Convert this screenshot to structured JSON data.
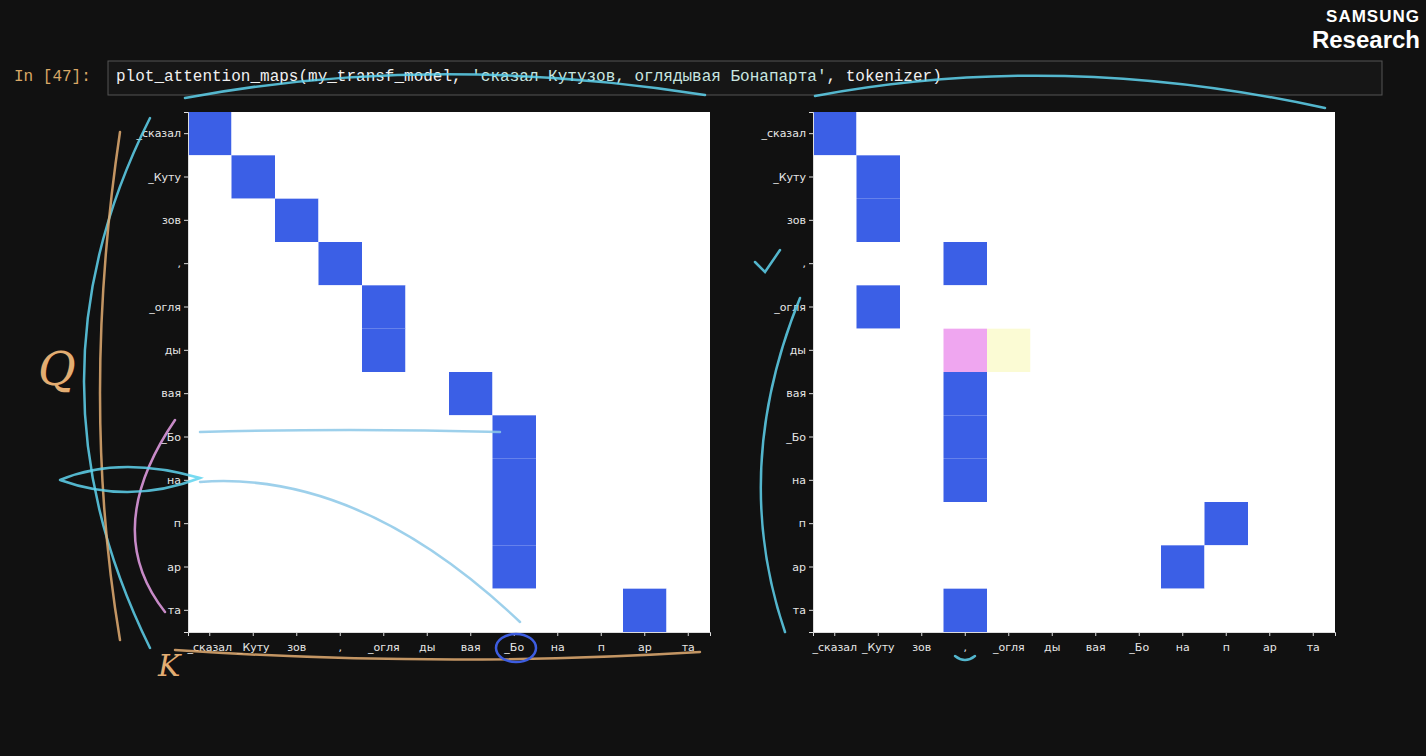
{
  "notebook": {
    "prompt": "In [47]:",
    "code_parts": [
      "plot_attention_maps(my_transf_model, ",
      "'сказал Кутузов, оглядывая Бонапарта'",
      ", tokenizer)"
    ]
  },
  "logo": {
    "brand": "SAMSUNG",
    "name": "Research"
  },
  "chart_data": [
    {
      "type": "heatmap",
      "annotations": [
        "Q",
        "K"
      ],
      "x": [
        "_сказал",
        "_Куту",
        "зов",
        ",",
        "_огля",
        "ды",
        "вая",
        "_Бо",
        "на",
        "п",
        "ар",
        "та"
      ],
      "y": [
        "_сказал",
        "_Куту",
        "зов",
        ",",
        "_огля",
        "ды",
        "вая",
        "_Бо",
        "на",
        "п",
        "ар",
        "та"
      ],
      "zlim": [
        0,
        1
      ],
      "values": [
        [
          1,
          0,
          0,
          0,
          0,
          0,
          0,
          0,
          0,
          0,
          0,
          0
        ],
        [
          0,
          1,
          0,
          0,
          0,
          0,
          0,
          0,
          0,
          0,
          0,
          0
        ],
        [
          0,
          0,
          1,
          0,
          0,
          0,
          0,
          0,
          0,
          0,
          0,
          0
        ],
        [
          0,
          0,
          0,
          1,
          0,
          0,
          0,
          0,
          0,
          0,
          0,
          0
        ],
        [
          0,
          0,
          0,
          0,
          1,
          0,
          0,
          0,
          0,
          0,
          0,
          0
        ],
        [
          0,
          0,
          0,
          0,
          1,
          0,
          0,
          0,
          0,
          0,
          0,
          0
        ],
        [
          0,
          0,
          0,
          0,
          0,
          0,
          1,
          0,
          0,
          0,
          0,
          0
        ],
        [
          0,
          0,
          0,
          0,
          0,
          0,
          0,
          1,
          0,
          0,
          0,
          0
        ],
        [
          0,
          0,
          0,
          0,
          0,
          0,
          0,
          1,
          0,
          0,
          0,
          0
        ],
        [
          0,
          0,
          0,
          0,
          0,
          0,
          0,
          1,
          0,
          0,
          0,
          0
        ],
        [
          0,
          0,
          0,
          0,
          0,
          0,
          0,
          1,
          0,
          0,
          0,
          0
        ],
        [
          0,
          0,
          0,
          0,
          0,
          0,
          0,
          0,
          0,
          0,
          1,
          0
        ]
      ]
    },
    {
      "type": "heatmap",
      "x": [
        "_сказал",
        "_Куту",
        "зов",
        ",",
        "_огля",
        "ды",
        "вая",
        "_Бо",
        "на",
        "п",
        "ар",
        "та"
      ],
      "y": [
        "_сказал",
        "_Куту",
        "зов",
        ",",
        "_огля",
        "ды",
        "вая",
        "_Бо",
        "на",
        "п",
        "ар",
        "та"
      ],
      "zlim": [
        0,
        1
      ],
      "values": [
        [
          1,
          0,
          0,
          0,
          0,
          0,
          0,
          0,
          0,
          0,
          0,
          0
        ],
        [
          0,
          1,
          0,
          0,
          0,
          0,
          0,
          0,
          0,
          0,
          0,
          0
        ],
        [
          0,
          1,
          0,
          0,
          0,
          0,
          0,
          0,
          0,
          0,
          0,
          0
        ],
        [
          0,
          0,
          0,
          1,
          0,
          0,
          0,
          0,
          0,
          0,
          0,
          0
        ],
        [
          0,
          1,
          0,
          0,
          0,
          0,
          0,
          0,
          0,
          0,
          0,
          0
        ],
        [
          0,
          0,
          0,
          0.65,
          0.3,
          0,
          0,
          0,
          0,
          0,
          0,
          0
        ],
        [
          0,
          0,
          0,
          1,
          0,
          0,
          0,
          0,
          0,
          0,
          0,
          0
        ],
        [
          0,
          0,
          0,
          1,
          0,
          0,
          0,
          0,
          0,
          0,
          0,
          0
        ],
        [
          0,
          0,
          0,
          1,
          0,
          0,
          0,
          0,
          0,
          0,
          0,
          0
        ],
        [
          0,
          0,
          0,
          0,
          0,
          0,
          0,
          0,
          0,
          1,
          0,
          0
        ],
        [
          0,
          0,
          0,
          0,
          0,
          0,
          0,
          0,
          1,
          0,
          0,
          0
        ],
        [
          0,
          0,
          0,
          1,
          0,
          0,
          0,
          0,
          0,
          0,
          0,
          0
        ]
      ]
    }
  ]
}
